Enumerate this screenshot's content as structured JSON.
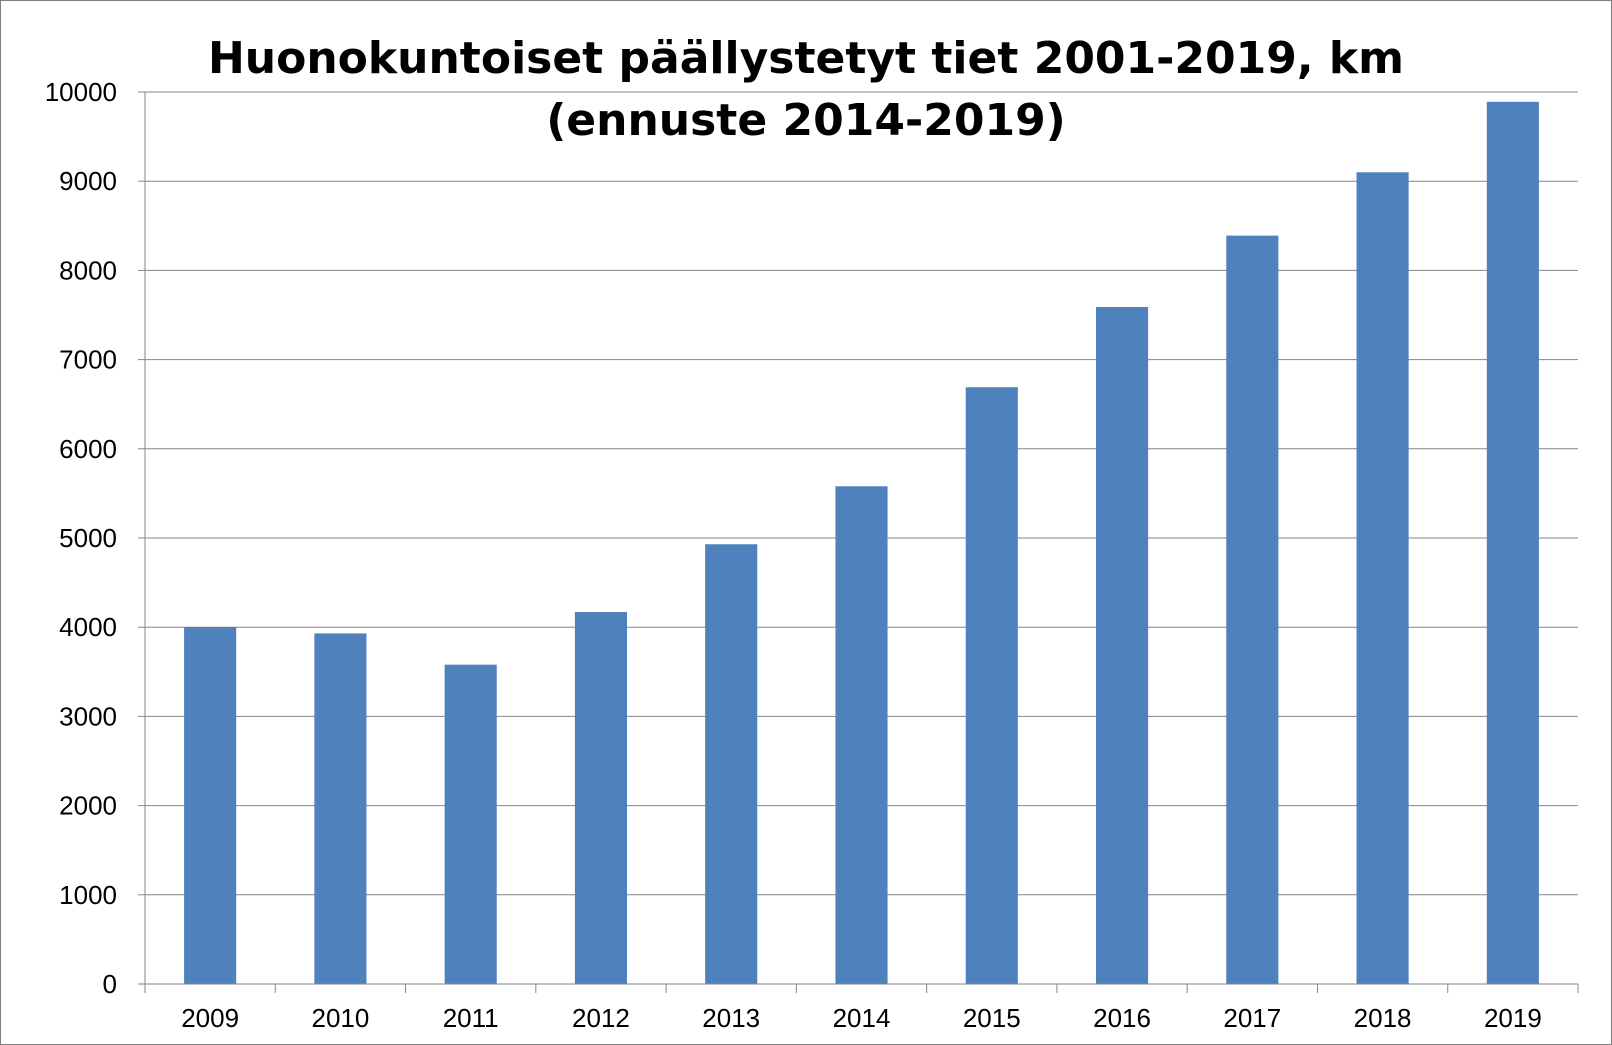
{
  "chart_data": {
    "type": "bar",
    "title_line1": "Huonokuntoiset  päällystetyt tiet 2001-2019, km",
    "title_line2": "(ennuste 2014-2019)",
    "categories": [
      "2009",
      "2010",
      "2011",
      "2012",
      "2013",
      "2014",
      "2015",
      "2016",
      "2017",
      "2018",
      "2019"
    ],
    "values": [
      4000,
      3930,
      3580,
      4170,
      4930,
      5580,
      6690,
      7590,
      8390,
      9100,
      9890
    ],
    "ylim": [
      0,
      10000
    ],
    "yticks": [
      "0",
      "1000",
      "2000",
      "3000",
      "4000",
      "5000",
      "6000",
      "7000",
      "8000",
      "9000",
      "10000"
    ],
    "grid": true,
    "legend": "none",
    "bar_color": "#4f81bd",
    "grid_color": "#868686"
  }
}
